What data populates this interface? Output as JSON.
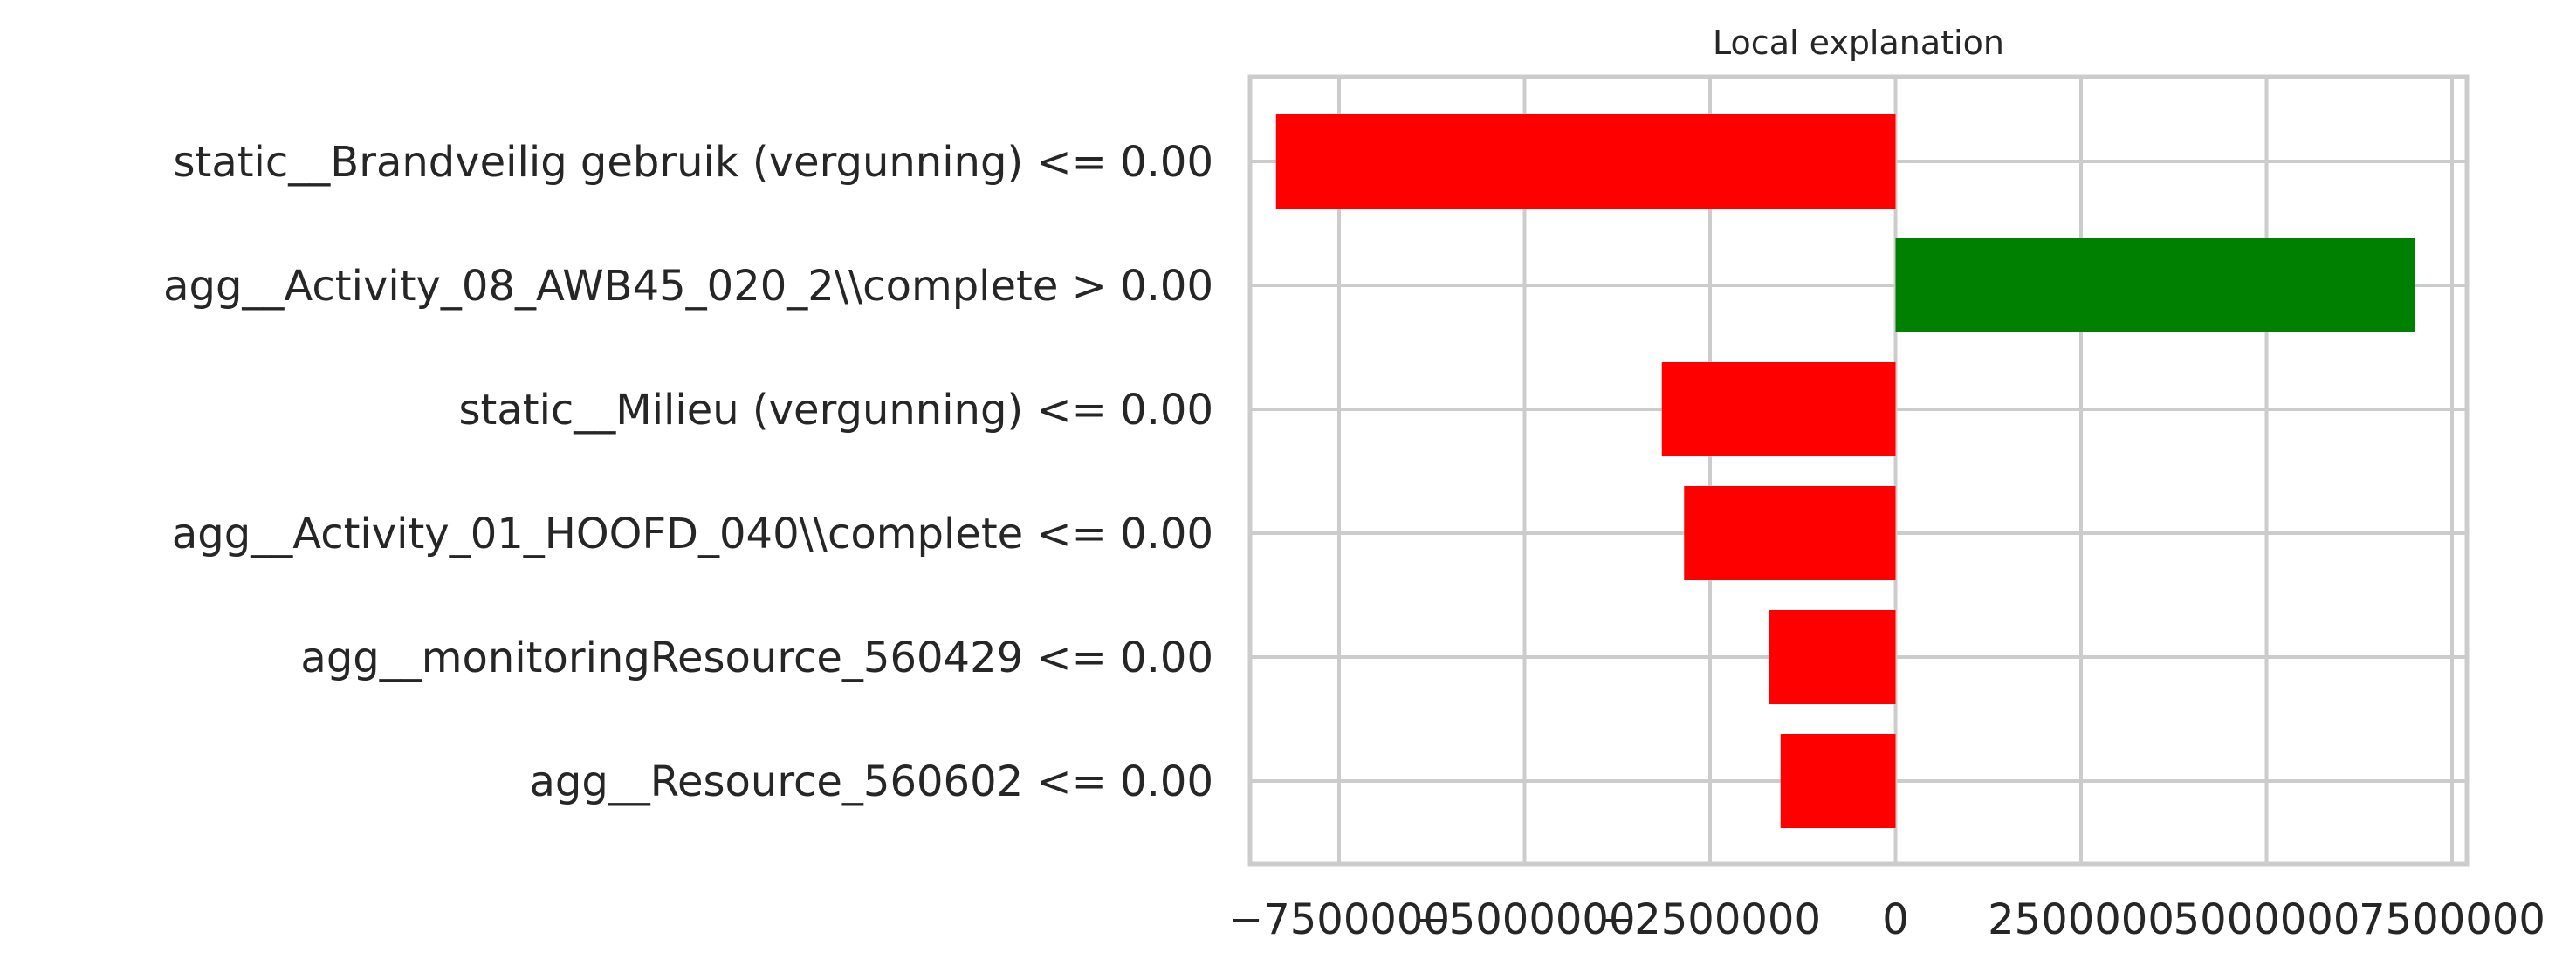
{
  "chart_data": {
    "type": "bar",
    "orientation": "horizontal",
    "title": "Local explanation",
    "xlabel": "",
    "ylabel": "",
    "xlim": [
      -8700000,
      7700000
    ],
    "xticks": [
      -7500000,
      -5000000,
      -2500000,
      0,
      2500000,
      5000000,
      7500000
    ],
    "xtick_labels": [
      "−7500000",
      "−5000000",
      "−2500000",
      "0",
      "2500000",
      "5000000",
      "7500000"
    ],
    "grid": true,
    "categories": [
      "static__Brandveilig gebruik (vergunning) <= 0.00",
      "agg__Activity_08_AWB45_020_2\\\\complete > 0.00",
      "static__Milieu (vergunning) <= 0.00",
      "agg__Activity_01_HOOFD_040\\\\complete <= 0.00",
      "agg__monitoringResource_560429 <= 0.00",
      "agg__Resource_560602 <= 0.00"
    ],
    "values": [
      -8350000,
      7000000,
      -3150000,
      -2850000,
      -1700000,
      -1550000
    ],
    "colors": {
      "negative": "#ff0000",
      "positive": "#008000"
    }
  }
}
